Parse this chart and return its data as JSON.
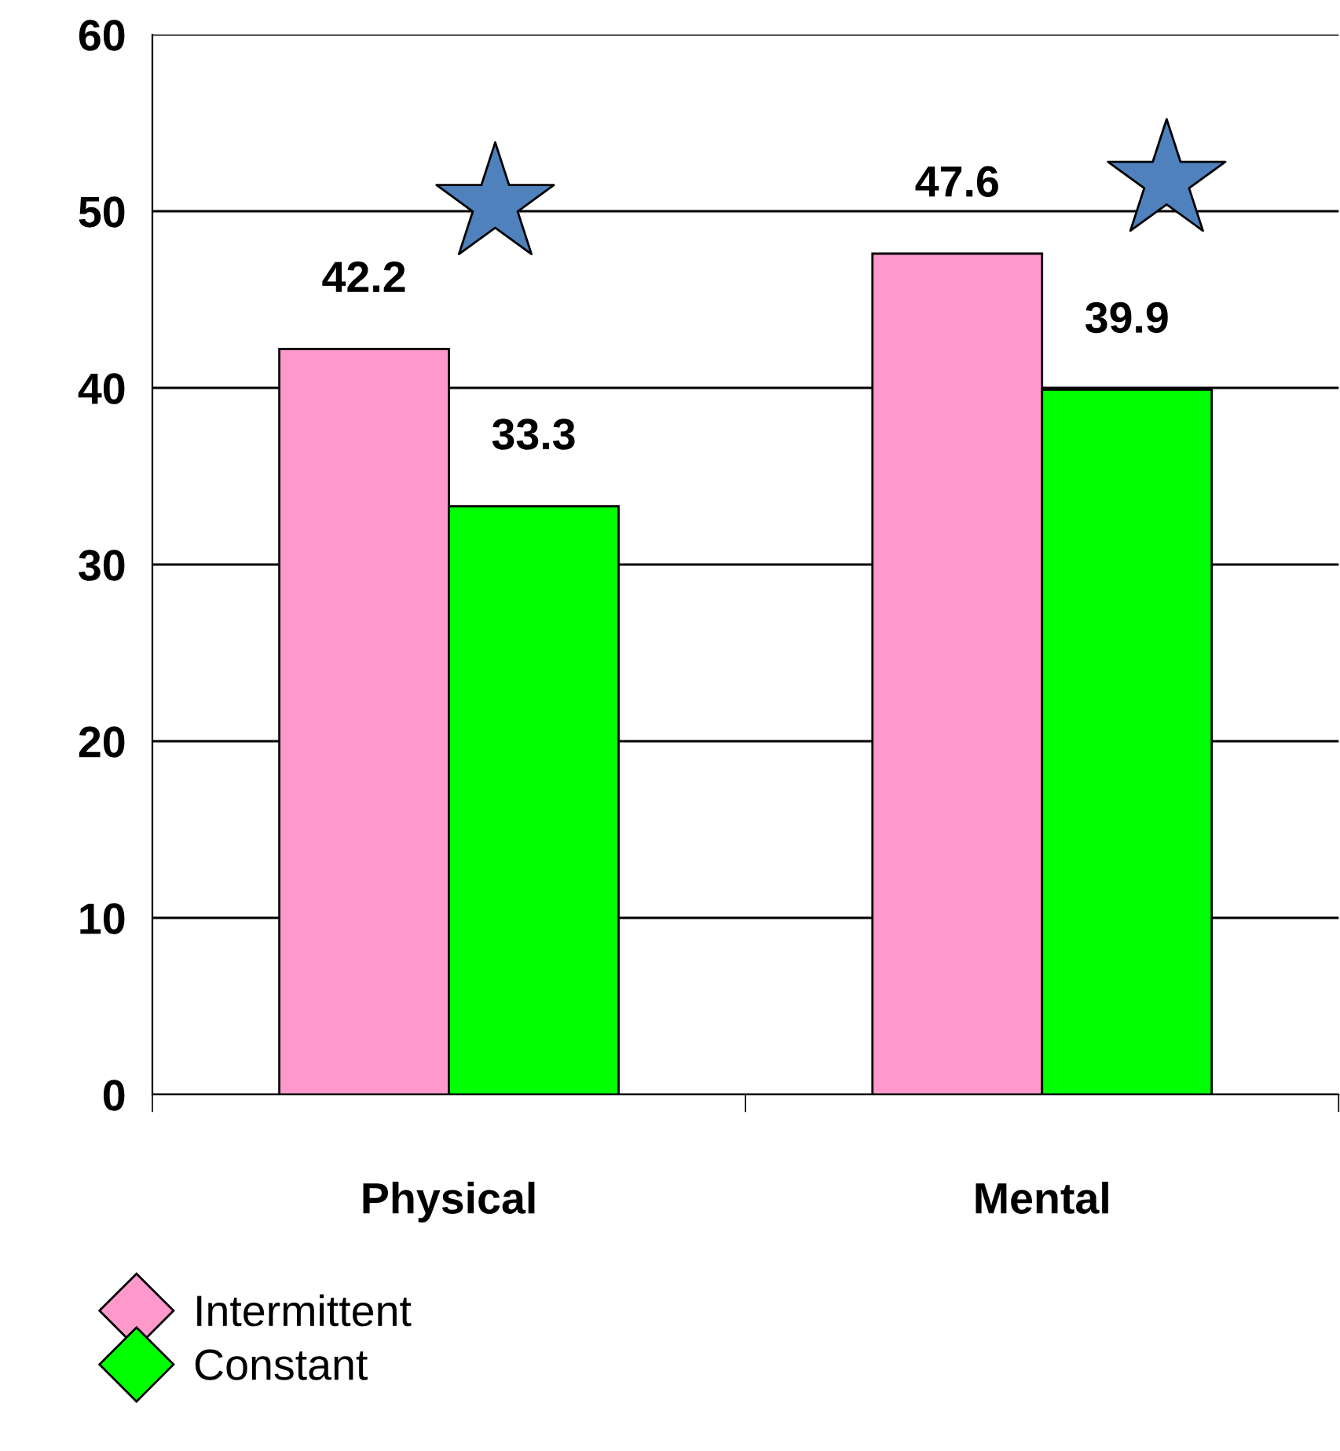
{
  "chart_data": {
    "type": "bar",
    "categories": [
      "Physical",
      "Mental"
    ],
    "series": [
      {
        "name": "Intermittent",
        "color": "#ff99cc",
        "values": [
          42.2,
          47.6
        ]
      },
      {
        "name": "Constant",
        "color": "#00ff00",
        "values": [
          33.3,
          39.9
        ]
      }
    ],
    "ylim": [
      0,
      60
    ],
    "yticks": [
      0,
      10,
      20,
      30,
      40,
      50,
      60
    ],
    "grid": "y",
    "legend": "bottom left",
    "data_labels": true,
    "marker": "diamond"
  }
}
